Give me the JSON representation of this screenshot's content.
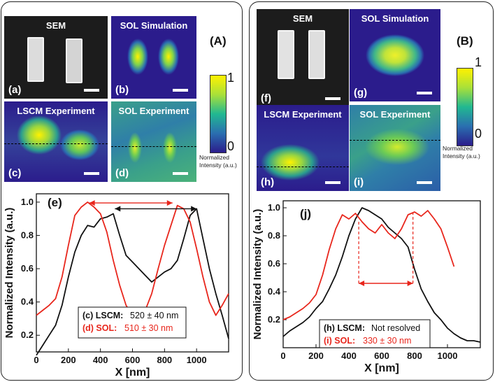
{
  "panelA": {
    "label": "(A)",
    "tiles": {
      "a": {
        "title": "SEM",
        "tag": "(a)"
      },
      "b": {
        "title": "SOL Simulation",
        "tag": "(b)"
      },
      "c": {
        "title": "LSCM Experiment",
        "tag": "(c)"
      },
      "d": {
        "title": "SOL Experiment",
        "tag": "(d)"
      }
    },
    "colorbar": {
      "max": "1",
      "min": "0",
      "caption_line1": "Normalized",
      "caption_line2": "Intensity (a.u.)"
    }
  },
  "panelB": {
    "label": "(B)",
    "tiles": {
      "f": {
        "title": "SEM",
        "tag": "(f)"
      },
      "g": {
        "title": "SOL Simulation",
        "tag": "(g)"
      },
      "h": {
        "title": "LSCM Experiment",
        "tag": "(h)"
      },
      "i": {
        "title": "SOL Experiment",
        "tag": "(i)"
      }
    },
    "colorbar": {
      "max": "1",
      "min": "0",
      "caption_line1": "Normalized",
      "caption_line2": "Intensity (a.u.)"
    }
  },
  "colors": {
    "lscm": "#111111",
    "sol": "#e8261c",
    "bg_dark": "#1e1e2e",
    "cmap_low": "#2b1c8c",
    "cmap_high": "#fff200"
  },
  "chart_data": [
    {
      "type": "line",
      "panel_label": "(e)",
      "xlabel": "X [nm]",
      "ylabel": "Normalized Intensity (a.u.)",
      "xlim": [
        0,
        1200
      ],
      "ylim": [
        0.1,
        1.05
      ],
      "xticks": [
        "0",
        "200",
        "400",
        "600",
        "800",
        "1000"
      ],
      "yticks": [
        "0.2",
        "0.4",
        "0.6",
        "0.8",
        "1.0"
      ],
      "legend": [
        {
          "tag": "(c) LSCM:",
          "value": "520 ± 40 nm",
          "color": "#111111"
        },
        {
          "tag": "(d) SOL:",
          "value": "510 ± 30 nm",
          "color": "#e8261c"
        }
      ],
      "series": [
        {
          "name": "LSCM",
          "color": "#111111",
          "x": [
            0,
            40,
            80,
            120,
            160,
            200,
            240,
            280,
            320,
            360,
            400,
            440,
            480,
            520,
            560,
            600,
            640,
            680,
            720,
            760,
            800,
            840,
            880,
            920,
            960,
            1000,
            1040,
            1080,
            1120,
            1160,
            1200
          ],
          "y": [
            0.08,
            0.14,
            0.2,
            0.26,
            0.38,
            0.55,
            0.7,
            0.8,
            0.86,
            0.85,
            0.9,
            0.91,
            0.93,
            0.8,
            0.68,
            0.64,
            0.6,
            0.56,
            0.52,
            0.55,
            0.58,
            0.6,
            0.65,
            0.78,
            0.92,
            0.96,
            0.78,
            0.6,
            0.45,
            0.32,
            0.18
          ]
        },
        {
          "name": "SOL",
          "color": "#e8261c",
          "x": [
            0,
            40,
            80,
            120,
            160,
            200,
            240,
            280,
            320,
            360,
            400,
            440,
            480,
            520,
            560,
            600,
            640,
            680,
            720,
            760,
            800,
            840,
            880,
            920,
            960,
            1000,
            1040,
            1080,
            1120,
            1160,
            1200
          ],
          "y": [
            0.32,
            0.35,
            0.38,
            0.42,
            0.55,
            0.74,
            0.92,
            0.97,
            1.0,
            0.97,
            0.93,
            0.82,
            0.65,
            0.5,
            0.38,
            0.32,
            0.3,
            0.35,
            0.45,
            0.6,
            0.74,
            0.86,
            0.98,
            0.96,
            0.88,
            0.72,
            0.55,
            0.4,
            0.32,
            0.38,
            0.45
          ]
        }
      ],
      "arrows": [
        {
          "color": "#e8261c",
          "x1": 330,
          "x2": 850,
          "y": 0.995
        },
        {
          "color": "#111111",
          "x1": 490,
          "x2": 1000,
          "y": 0.96
        }
      ]
    },
    {
      "type": "line",
      "panel_label": "(j)",
      "xlabel": "X [nm]",
      "ylabel": "Normalized Intensity (a.u.)",
      "xlim": [
        0,
        1200
      ],
      "ylim": [
        0.0,
        1.05
      ],
      "xticks": [
        "0",
        "200",
        "400",
        "600",
        "800",
        "1000"
      ],
      "yticks": [
        "0.2",
        "0.4",
        "0.6",
        "0.8",
        "1.0"
      ],
      "legend": [
        {
          "tag": "(h) LSCM:",
          "value": "Not resolved",
          "color": "#111111"
        },
        {
          "tag": "(i) SOL:",
          "value": "330 ± 30 nm",
          "color": "#e8261c"
        }
      ],
      "series": [
        {
          "name": "LSCM",
          "color": "#111111",
          "x": [
            0,
            40,
            80,
            120,
            160,
            200,
            240,
            280,
            320,
            360,
            400,
            440,
            480,
            520,
            560,
            600,
            640,
            680,
            720,
            760,
            800,
            840,
            880,
            920,
            960,
            1000,
            1040,
            1080,
            1120,
            1160,
            1200
          ],
          "y": [
            0.08,
            0.12,
            0.15,
            0.18,
            0.22,
            0.28,
            0.33,
            0.42,
            0.52,
            0.65,
            0.8,
            0.92,
            1.0,
            0.98,
            0.95,
            0.92,
            0.86,
            0.82,
            0.78,
            0.72,
            0.56,
            0.42,
            0.33,
            0.25,
            0.2,
            0.14,
            0.1,
            0.07,
            0.05,
            0.05,
            0.04
          ]
        },
        {
          "name": "SOL",
          "color": "#e8261c",
          "x": [
            0,
            40,
            80,
            120,
            160,
            200,
            240,
            280,
            320,
            360,
            400,
            440,
            480,
            520,
            560,
            600,
            640,
            680,
            720,
            760,
            800,
            840,
            880,
            920,
            960,
            1000,
            1040
          ],
          "y": [
            0.2,
            0.22,
            0.25,
            0.28,
            0.32,
            0.38,
            0.52,
            0.7,
            0.85,
            0.95,
            0.92,
            0.96,
            0.9,
            0.85,
            0.82,
            0.88,
            0.82,
            0.78,
            0.85,
            0.95,
            0.97,
            0.94,
            0.98,
            0.92,
            0.85,
            0.72,
            0.58
          ]
        }
      ],
      "arrows": [
        {
          "color": "#e8261c",
          "x1": 460,
          "x2": 790,
          "y": 0.46
        }
      ]
    }
  ]
}
